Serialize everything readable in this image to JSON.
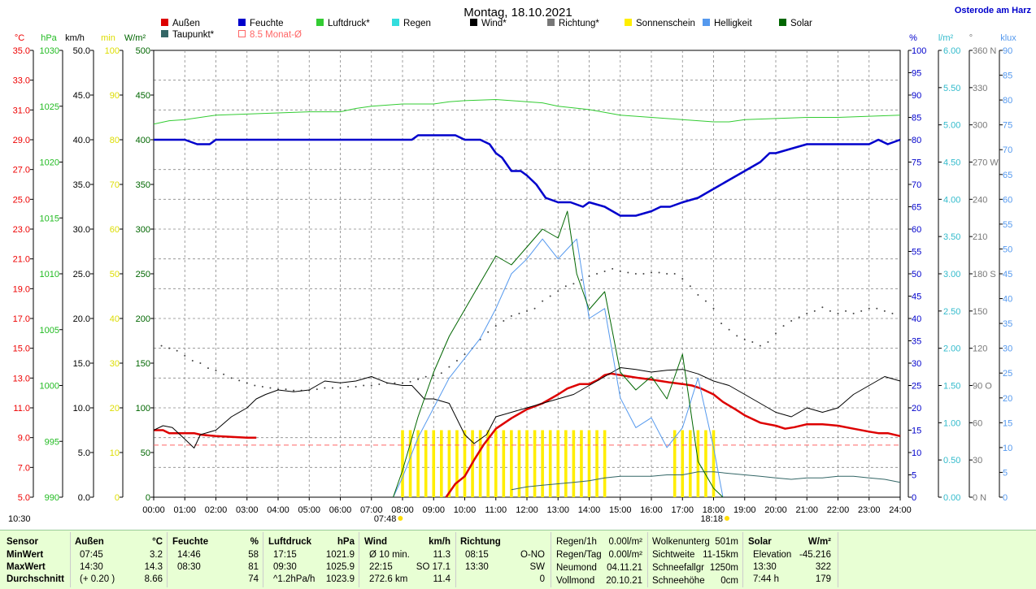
{
  "header": {
    "title": "Montag, 18.10.2021",
    "location": "Osterode am Harz"
  },
  "legend": [
    {
      "label": "Außen",
      "color": "#dd0000"
    },
    {
      "label": "Taupunkt*",
      "color": "#336666"
    },
    {
      "label": "Feuchte",
      "color": "#0000cc"
    },
    {
      "label": "8.5 Monat-Ø",
      "color": "#ff6666"
    },
    {
      "label": "Luftdruck*",
      "color": "#33cc33"
    },
    {
      "label": "Regen",
      "color": "#33dddd"
    },
    {
      "label": "Wind*",
      "color": "#000000"
    },
    {
      "label": "Richtung*",
      "color": "#777777"
    },
    {
      "label": "Sonnenschein",
      "color": "#ffee00"
    },
    {
      "label": "Helligkeit",
      "color": "#5599ee"
    },
    {
      "label": "Solar",
      "color": "#006600"
    }
  ],
  "axes": {
    "celsius": {
      "unit": "°C",
      "color": "#ee0000",
      "ticks": [
        "35.0",
        "33.0",
        "31.0",
        "29.0",
        "27.0",
        "25.0",
        "23.0",
        "21.0",
        "19.0",
        "17.0",
        "15.0",
        "13.0",
        "11.0",
        "9.0",
        "7.0",
        "5.0"
      ]
    },
    "hpa": {
      "unit": "hPa",
      "color": "#22bb22",
      "ticks": [
        "1030",
        "1025",
        "1020",
        "1015",
        "1010",
        "1005",
        "1000",
        "995",
        "990"
      ]
    },
    "kmh": {
      "unit": "km/h",
      "color": "#000000",
      "ticks": [
        "50.0",
        "45.0",
        "40.0",
        "35.0",
        "30.0",
        "25.0",
        "20.0",
        "15.0",
        "10.0",
        "5.0",
        "0.0"
      ]
    },
    "min": {
      "unit": "min",
      "color": "#dddd00",
      "ticks": [
        "100",
        "90",
        "80",
        "70",
        "60",
        "50",
        "40",
        "30",
        "20",
        "10",
        "0"
      ]
    },
    "wm2": {
      "unit": "W/m²",
      "color": "#006600",
      "ticks": [
        "500",
        "450",
        "400",
        "350",
        "300",
        "250",
        "200",
        "150",
        "100",
        "50",
        "0"
      ]
    },
    "percent": {
      "unit": "%",
      "color": "#0000cc",
      "ticks": [
        "100",
        "95",
        "90",
        "85",
        "80",
        "75",
        "70",
        "65",
        "60",
        "55",
        "50",
        "45",
        "40",
        "35",
        "30",
        "25",
        "20",
        "15",
        "10",
        "5",
        "0"
      ]
    },
    "lm2": {
      "unit": "l/m²",
      "color": "#33bbcc",
      "ticks": [
        "6.00",
        "5.50",
        "5.00",
        "4.50",
        "4.00",
        "3.50",
        "3.00",
        "2.50",
        "2.00",
        "1.50",
        "1.00",
        "0.50",
        "0.00"
      ]
    },
    "deg": {
      "unit": "°",
      "color": "#777777",
      "ticks": [
        "360 N",
        "330",
        "300",
        "270 W",
        "240",
        "210",
        "180 S",
        "150",
        "120",
        "90 O",
        "60",
        "30",
        "0 N"
      ]
    },
    "klux": {
      "unit": "klux",
      "color": "#5599ee",
      "ticks": [
        "90",
        "85",
        "80",
        "75",
        "70",
        "65",
        "60",
        "55",
        "50",
        "45",
        "40",
        "35",
        "30",
        "25",
        "20",
        "15",
        "10",
        "5",
        "0"
      ]
    },
    "time": [
      "00:00",
      "01:00",
      "02:00",
      "03:00",
      "04:00",
      "05:00",
      "06:00",
      "07:00",
      "08:00",
      "09:00",
      "10:00",
      "11:00",
      "12:00",
      "13:00",
      "14:00",
      "15:00",
      "16:00",
      "17:00",
      "18:00",
      "19:00",
      "20:00",
      "21:00",
      "22:00",
      "23:00",
      "24:00"
    ]
  },
  "markers": {
    "sunrise": "07:48",
    "sunset": "18:18",
    "moonrise": "10:30"
  },
  "chart_data": {
    "type": "line",
    "title": "Montag, 18.10.2021",
    "x_unit": "hour",
    "xlim": [
      0,
      24
    ],
    "series": [
      {
        "name": "Außen",
        "axis": "celsius",
        "color": "#dd0000",
        "width": 2.5,
        "x": [
          0,
          0.3,
          0.5,
          1,
          1.3,
          1.5,
          2,
          2.5,
          3,
          3.3
        ],
        "y": [
          9.5,
          9.5,
          9.3,
          9.3,
          9.3,
          9.2,
          9.1,
          9.05,
          9.0,
          9.0
        ]
      },
      {
        "name": "Außen",
        "axis": "celsius",
        "color": "#dd0000",
        "width": 2.5,
        "x": [
          9.4,
          9.7,
          10,
          10.3,
          10.6,
          11,
          11.5,
          12,
          12.5,
          13,
          13.3,
          13.7,
          14,
          14.3,
          14.5,
          14.7,
          15,
          15.3,
          15.6,
          16,
          16.3,
          16.6,
          17,
          17.3,
          17.6,
          18,
          18.3,
          18.7,
          19,
          19.5,
          20,
          20.3,
          20.6,
          21,
          21.5,
          22,
          22.5,
          23,
          23.3,
          23.6,
          24
        ],
        "y": [
          5.0,
          5.9,
          6.4,
          7.5,
          8.5,
          9.6,
          10.3,
          10.9,
          11.3,
          11.9,
          12.3,
          12.6,
          12.6,
          12.9,
          13.2,
          13.3,
          13.2,
          13.1,
          13.0,
          12.9,
          12.8,
          12.7,
          12.6,
          12.5,
          12.3,
          11.9,
          11.4,
          10.9,
          10.5,
          10.0,
          9.8,
          9.6,
          9.7,
          9.9,
          9.9,
          9.8,
          9.6,
          9.4,
          9.3,
          9.3,
          9.1
        ]
      },
      {
        "name": "Taupunkt*",
        "axis": "celsius",
        "color": "#336666",
        "width": 1,
        "x": [
          11.5,
          12,
          12.5,
          13,
          13.5,
          14,
          14.5,
          15,
          15.5,
          16,
          16.5,
          17,
          17.5,
          18,
          18.5,
          19,
          19.5,
          20,
          20.5,
          21,
          21.5,
          22,
          22.5,
          23,
          23.5,
          24
        ],
        "y": [
          5.5,
          5.7,
          5.8,
          5.9,
          6.0,
          6.1,
          6.3,
          6.4,
          6.4,
          6.4,
          6.5,
          6.5,
          6.7,
          6.7,
          6.6,
          6.5,
          6.4,
          6.3,
          6.2,
          6.3,
          6.3,
          6.4,
          6.4,
          6.3,
          6.2,
          6.0
        ]
      },
      {
        "name": "Feuchte",
        "axis": "percent",
        "color": "#0000cc",
        "width": 2.5,
        "x": [
          0,
          1,
          1.4,
          1.8,
          2,
          3,
          4,
          5,
          6,
          7,
          8.3,
          8.5,
          9,
          9.7,
          10,
          10.5,
          10.8,
          11,
          11.2,
          11.5,
          11.8,
          12,
          12.3,
          12.6,
          13,
          13.4,
          13.8,
          14,
          14.5,
          15,
          15.5,
          16,
          16.3,
          16.6,
          17,
          17.5,
          18,
          18.5,
          19,
          19.5,
          19.8,
          20,
          20.5,
          21,
          21.5,
          22,
          22.5,
          23,
          23.3,
          23.6,
          24
        ],
        "y": [
          80,
          80,
          79,
          79,
          80,
          80,
          80,
          80,
          80,
          80,
          80,
          81,
          81,
          81,
          80,
          80,
          79,
          77,
          76,
          73,
          73,
          72,
          70,
          67,
          66,
          66,
          65,
          66,
          65,
          63,
          63,
          64,
          65,
          65,
          66,
          67,
          69,
          71,
          73,
          75,
          77,
          77,
          78,
          79,
          79,
          79,
          79,
          79,
          80,
          79,
          80
        ]
      },
      {
        "name": "Luftdruck*",
        "axis": "hpa",
        "color": "#33cc33",
        "width": 1,
        "x": [
          0,
          0.5,
          1,
          1.5,
          2,
          3,
          4,
          5,
          6,
          6.5,
          7,
          8,
          9,
          9.5,
          10,
          11,
          12,
          12.5,
          13,
          14,
          15,
          16,
          17,
          18,
          18.5,
          19,
          20,
          21,
          22,
          23,
          24
        ],
        "y": [
          1023.4,
          1023.7,
          1023.8,
          1024.0,
          1024.2,
          1024.3,
          1024.4,
          1024.5,
          1024.5,
          1024.8,
          1025.0,
          1025.2,
          1025.2,
          1025.4,
          1025.5,
          1025.6,
          1025.4,
          1025.3,
          1025.0,
          1024.7,
          1024.2,
          1024.0,
          1023.8,
          1023.6,
          1023.6,
          1023.8,
          1023.9,
          1024.0,
          1024.0,
          1024.1,
          1024.2
        ]
      },
      {
        "name": "Wind*",
        "axis": "kmh",
        "color": "#000000",
        "width": 1,
        "x": [
          0,
          0.3,
          0.6,
          1,
          1.3,
          1.5,
          2,
          2.5,
          3,
          3.3,
          3.6,
          4,
          4.5,
          5,
          5.5,
          6,
          6.5,
          7,
          7.5,
          8,
          8.3,
          8.7,
          9,
          9.5,
          10,
          10.3,
          10.7,
          11,
          11.5,
          12,
          12.5,
          13,
          13.5,
          14,
          14.5,
          15,
          15.5,
          16,
          16.5,
          17,
          17.5,
          18,
          18.5,
          19,
          19.5,
          20,
          20.5,
          21,
          21.5,
          22,
          22.5,
          23,
          23.5,
          24
        ],
        "y": [
          7.5,
          8.0,
          7.8,
          6.5,
          5.5,
          7.0,
          7.5,
          9.0,
          10.0,
          11.0,
          11.5,
          12.0,
          11.8,
          12.0,
          13.0,
          12.8,
          13.0,
          13.5,
          12.8,
          12.5,
          12.5,
          11.0,
          11.0,
          10.5,
          7.0,
          6.0,
          7.0,
          9.0,
          9.5,
          10.0,
          10.5,
          11.0,
          11.5,
          12.5,
          13.5,
          14.5,
          14.3,
          14.0,
          14.2,
          14.3,
          13.8,
          13.0,
          12.5,
          11.5,
          10.5,
          9.5,
          9.0,
          10.0,
          9.5,
          10.0,
          11.5,
          12.5,
          13.5,
          13.0
        ]
      },
      {
        "name": "Helligkeit",
        "axis": "klux",
        "color": "#5599ee",
        "width": 1,
        "x": [
          7.7,
          8,
          8.5,
          9,
          9.5,
          10,
          10.5,
          11,
          11.5,
          12,
          12.5,
          13,
          13.3,
          13.6,
          14,
          14.5,
          15,
          15.5,
          16,
          16.5,
          17,
          17.5,
          18,
          18.3
        ],
        "y": [
          0,
          4,
          12,
          18,
          24,
          28,
          32,
          38,
          45,
          48,
          52,
          48,
          50,
          52,
          36,
          38,
          20,
          14,
          16,
          10,
          14,
          24,
          10,
          0
        ]
      },
      {
        "name": "Solar",
        "axis": "wm2",
        "color": "#006600",
        "width": 1,
        "x": [
          7.7,
          8,
          8.5,
          9,
          9.5,
          10,
          10.5,
          11,
          11.5,
          12,
          12.5,
          13,
          13.3,
          13.6,
          14,
          14.5,
          15,
          15.5,
          16,
          16.5,
          17,
          17.5,
          18,
          18.3
        ],
        "y": [
          0,
          30,
          90,
          140,
          180,
          210,
          240,
          270,
          260,
          280,
          300,
          290,
          320,
          250,
          210,
          230,
          140,
          120,
          135,
          110,
          160,
          40,
          10,
          0
        ]
      }
    ],
    "sunshine_bars": {
      "axis": "min",
      "x": [
        8.0,
        8.25,
        8.5,
        8.75,
        9.0,
        9.25,
        9.5,
        9.75,
        10.0,
        10.25,
        10.5,
        10.75,
        11.0,
        11.25,
        11.5,
        11.75,
        12.0,
        12.25,
        12.5,
        12.75,
        13.0,
        13.25,
        13.5,
        13.75,
        14.0,
        14.25,
        14.5,
        16.75,
        17.0,
        17.25,
        17.5,
        17.75,
        18.0
      ],
      "y": 15
    },
    "direction_dots": {
      "axis": "deg",
      "x": [
        0.25,
        0.5,
        0.75,
        1.0,
        1.25,
        1.5,
        1.75,
        2.0,
        2.25,
        2.5,
        2.75,
        3.0,
        3.25,
        3.5,
        3.75,
        4.0,
        4.25,
        4.5,
        4.75,
        5.0,
        5.25,
        5.5,
        5.75,
        6.0,
        6.25,
        6.5,
        6.75,
        7.0,
        7.25,
        7.5,
        7.75,
        8.0,
        8.25,
        8.5,
        8.75,
        9.0,
        9.25,
        9.5,
        9.75,
        10.0,
        10.25,
        10.5,
        10.75,
        11.0,
        11.25,
        11.5,
        11.75,
        12.0,
        12.25,
        12.5,
        12.75,
        13.0,
        13.25,
        13.5,
        13.75,
        14.0,
        14.25,
        14.5,
        14.75,
        15.0,
        15.25,
        15.5,
        15.75,
        16.0,
        16.25,
        16.5,
        16.75,
        17.0,
        17.25,
        17.5,
        17.75,
        18.0,
        18.25,
        18.5,
        18.75,
        19.0,
        19.25,
        19.5,
        19.75,
        20.0,
        20.25,
        20.5,
        20.75,
        21.0,
        21.25,
        21.5,
        21.75,
        22.0,
        22.25,
        22.5,
        22.75,
        23.0,
        23.25,
        23.5,
        23.75
      ],
      "y": [
        122,
        120,
        118,
        114,
        110,
        108,
        104,
        102,
        99,
        96,
        94,
        92,
        90,
        89,
        88,
        87,
        87,
        86,
        86,
        86,
        87,
        88,
        88,
        88,
        89,
        89,
        90,
        90,
        91,
        92,
        92,
        92,
        93,
        95,
        97,
        98,
        100,
        105,
        110,
        115,
        120,
        127,
        133,
        138,
        142,
        146,
        148,
        150,
        152,
        158,
        162,
        166,
        170,
        172,
        175,
        178,
        180,
        182,
        184,
        182,
        181,
        180,
        180,
        181,
        181,
        180,
        180,
        176,
        170,
        163,
        158,
        152,
        140,
        135,
        130,
        127,
        125,
        122,
        125,
        132,
        138,
        142,
        145,
        148,
        150,
        153,
        150,
        148,
        150,
        148,
        150,
        152,
        152,
        150,
        148
      ]
    },
    "reference_line": {
      "name": "8.5 Monat-Ø",
      "axis": "celsius",
      "y": 8.5
    }
  },
  "footer": {
    "sensor": {
      "header": "Sensor",
      "rows": [
        "MinWert",
        "MaxWert",
        "Durchschnitt"
      ]
    },
    "aussen": {
      "header": "Außen",
      "unit": "°C",
      "rows": [
        [
          "07:45",
          "3.2"
        ],
        [
          "14:30",
          "14.3"
        ],
        [
          "(+ 0.20 )",
          "8.66"
        ]
      ]
    },
    "feuchte": {
      "header": "Feuchte",
      "unit": "%",
      "rows": [
        [
          "14:46",
          "58"
        ],
        [
          "08:30",
          "81"
        ],
        [
          "",
          "74"
        ]
      ]
    },
    "luftdruck": {
      "header": "Luftdruck",
      "unit": "hPa",
      "rows": [
        [
          "17:15",
          "1021.9"
        ],
        [
          "09:30",
          "1025.9"
        ],
        [
          "^1.2hPa/h",
          "1023.9"
        ]
      ]
    },
    "wind": {
      "header": "Wind",
      "unit": "km/h",
      "rows": [
        [
          "Ø 10 min.",
          "11.3"
        ],
        [
          "22:15",
          "SO 17.1"
        ],
        [
          "272.6 km",
          "11.4"
        ]
      ]
    },
    "richtung": {
      "header": "Richtung",
      "rows": [
        [
          "08:15",
          "O-NO"
        ],
        [
          "13:30",
          "SW"
        ],
        [
          "",
          "0"
        ]
      ]
    },
    "regen": {
      "rows": [
        [
          "Regen/1h",
          "0.00l/m²"
        ],
        [
          "Regen/Tag",
          "0.00l/m²"
        ],
        [
          "Neumond",
          "04.11.21"
        ],
        [
          "Vollmond",
          "20.10.21"
        ]
      ]
    },
    "wolken": {
      "rows": [
        [
          "Wolkenunterg",
          "501m"
        ],
        [
          "Sichtweite",
          "11-15km"
        ],
        [
          "Schneefallgr",
          "1250m"
        ],
        [
          "Schneehöhe",
          "0cm"
        ]
      ]
    },
    "solar": {
      "header": "Solar",
      "unit": "W/m²",
      "rows": [
        [
          "Elevation",
          "-45.216"
        ],
        [
          "13:30",
          "322"
        ],
        [
          "7:44 h",
          "179"
        ]
      ]
    }
  }
}
